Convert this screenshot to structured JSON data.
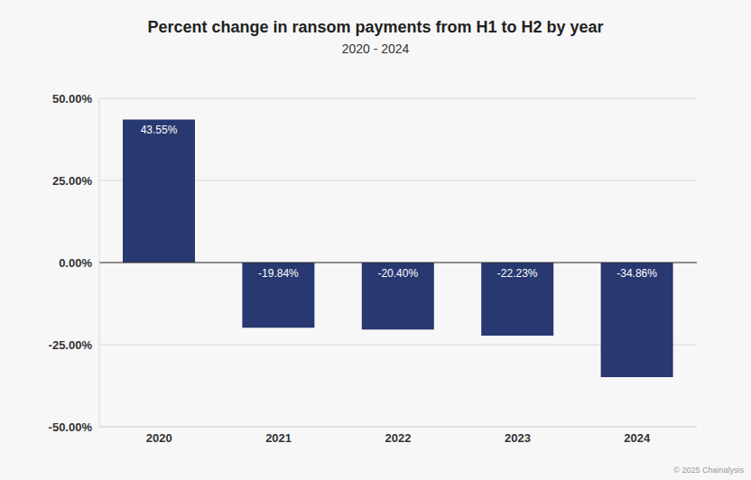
{
  "chart_data": {
    "type": "bar",
    "title": "Percent change in ransom payments from H1 to H2 by year",
    "subtitle": "2020 - 2024",
    "annotation": "© 2025 Chainalysis",
    "categories": [
      "2020",
      "2021",
      "2022",
      "2023",
      "2024"
    ],
    "values": [
      43.55,
      -19.84,
      -20.4,
      -22.23,
      -34.86
    ],
    "value_labels": [
      "43.55%",
      "-19.84%",
      "-20.40%",
      "-22.23%",
      "-34.86%"
    ],
    "color": "#283870",
    "ylim": [
      -50,
      50
    ],
    "yticks": [
      {
        "value": -50,
        "label": "-50.00%"
      },
      {
        "value": -25,
        "label": "-25.00%"
      },
      {
        "value": 0,
        "label": "0.00%"
      },
      {
        "value": 25,
        "label": "25.00%"
      },
      {
        "value": 50,
        "label": "50.00%"
      }
    ],
    "grid": true,
    "data_labels": true
  }
}
